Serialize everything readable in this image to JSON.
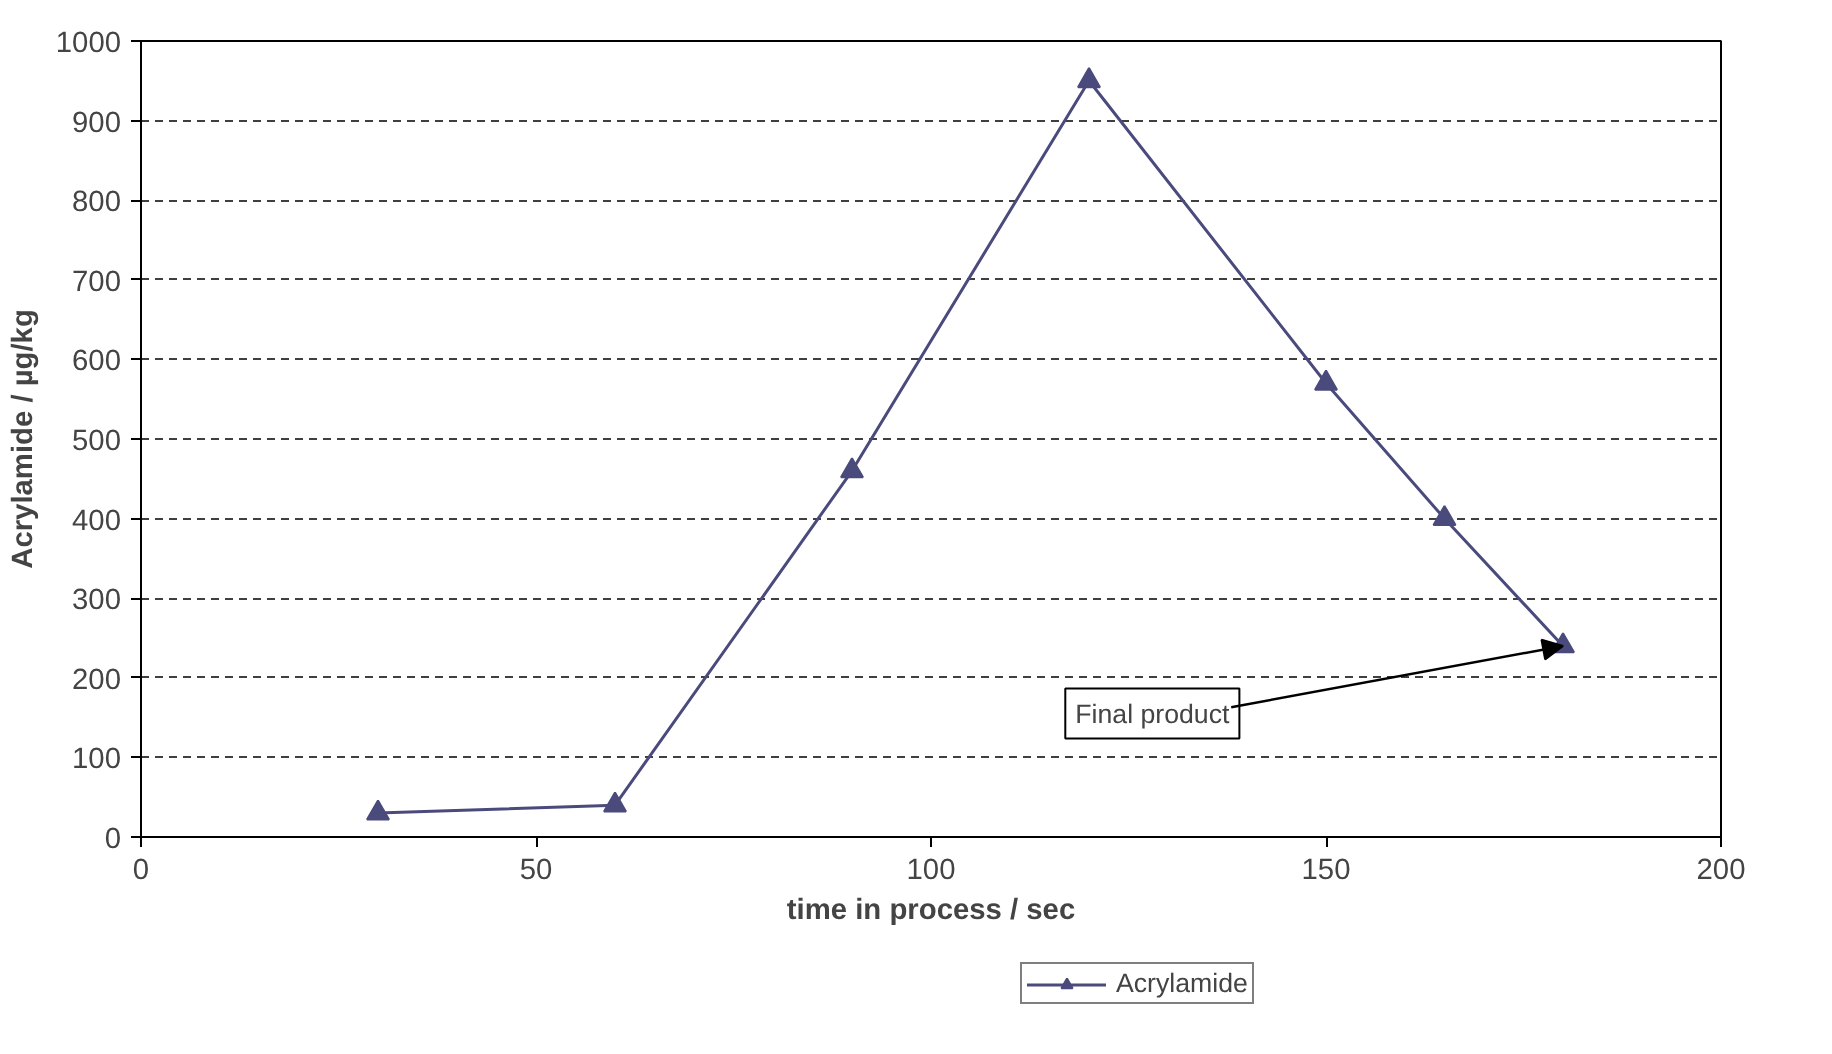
{
  "chart_data": {
    "type": "line",
    "xlabel": "time in process / sec",
    "ylabel": "Acrylamide / µg/kg",
    "x": [
      30,
      60,
      90,
      120,
      150,
      165,
      180
    ],
    "series": [
      {
        "name": "Acrylamide",
        "color": "#4a4a7c",
        "values": [
          30,
          40,
          460,
          950,
          570,
          400,
          240
        ]
      }
    ],
    "xlim": [
      0,
      200
    ],
    "xticks": [
      0,
      50,
      100,
      150,
      200
    ],
    "ylim": [
      0,
      1000
    ],
    "yticks": [
      0,
      100,
      200,
      300,
      400,
      500,
      600,
      700,
      800,
      900,
      1000
    ],
    "grid": "y",
    "legend": "bottom",
    "marker": "triangle",
    "line_style": "solid",
    "annotations": [
      {
        "text": "Final product",
        "x": 180,
        "y": 240
      }
    ]
  }
}
